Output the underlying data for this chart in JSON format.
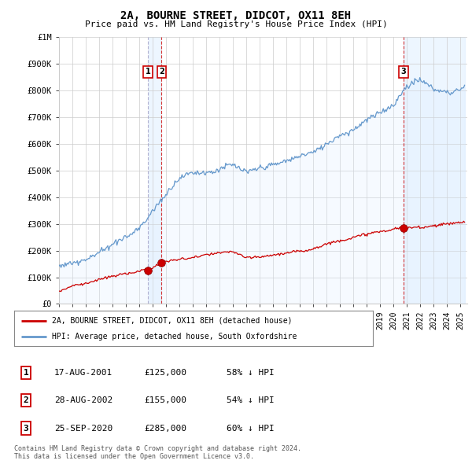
{
  "title": "2A, BOURNE STREET, DIDCOT, OX11 8EH",
  "subtitle": "Price paid vs. HM Land Registry's House Price Index (HPI)",
  "xlim": [
    1995,
    2025.5
  ],
  "ylim": [
    0,
    1000000
  ],
  "yticks": [
    0,
    100000,
    200000,
    300000,
    400000,
    500000,
    600000,
    700000,
    800000,
    900000,
    1000000
  ],
  "ytick_labels": [
    "£0",
    "£100K",
    "£200K",
    "£300K",
    "£400K",
    "£500K",
    "£600K",
    "£700K",
    "£800K",
    "£900K",
    "£1M"
  ],
  "xticks": [
    1995,
    1996,
    1997,
    1998,
    1999,
    2000,
    2001,
    2002,
    2003,
    2004,
    2005,
    2006,
    2007,
    2008,
    2009,
    2010,
    2011,
    2012,
    2013,
    2014,
    2015,
    2016,
    2017,
    2018,
    2019,
    2020,
    2021,
    2022,
    2023,
    2024,
    2025
  ],
  "sale_points": [
    {
      "num": 1,
      "year": 2001.63,
      "price": 125000
    },
    {
      "num": 2,
      "year": 2002.66,
      "price": 155000
    },
    {
      "num": 3,
      "year": 2020.73,
      "price": 285000
    }
  ],
  "vline_color": "#cc0000",
  "vline1_color": "#8888bb",
  "dot_color": "#cc0000",
  "hpi_line_color": "#6699cc",
  "hpi_fill_color": "#ddeeff",
  "property_line_color": "#cc0000",
  "legend_label_property": "2A, BOURNE STREET, DIDCOT, OX11 8EH (detached house)",
  "legend_label_hpi": "HPI: Average price, detached house, South Oxfordshire",
  "footer_text": "Contains HM Land Registry data © Crown copyright and database right 2024.\nThis data is licensed under the Open Government Licence v3.0.",
  "table_rows": [
    {
      "num": 1,
      "date": "17-AUG-2001",
      "price": "£125,000",
      "hpi": "58% ↓ HPI"
    },
    {
      "num": 2,
      "date": "28-AUG-2002",
      "price": "£155,000",
      "hpi": "54% ↓ HPI"
    },
    {
      "num": 3,
      "date": "25-SEP-2020",
      "price": "£285,000",
      "hpi": "60% ↓ HPI"
    }
  ],
  "bg_color": "#ffffff",
  "grid_color": "#cccccc"
}
